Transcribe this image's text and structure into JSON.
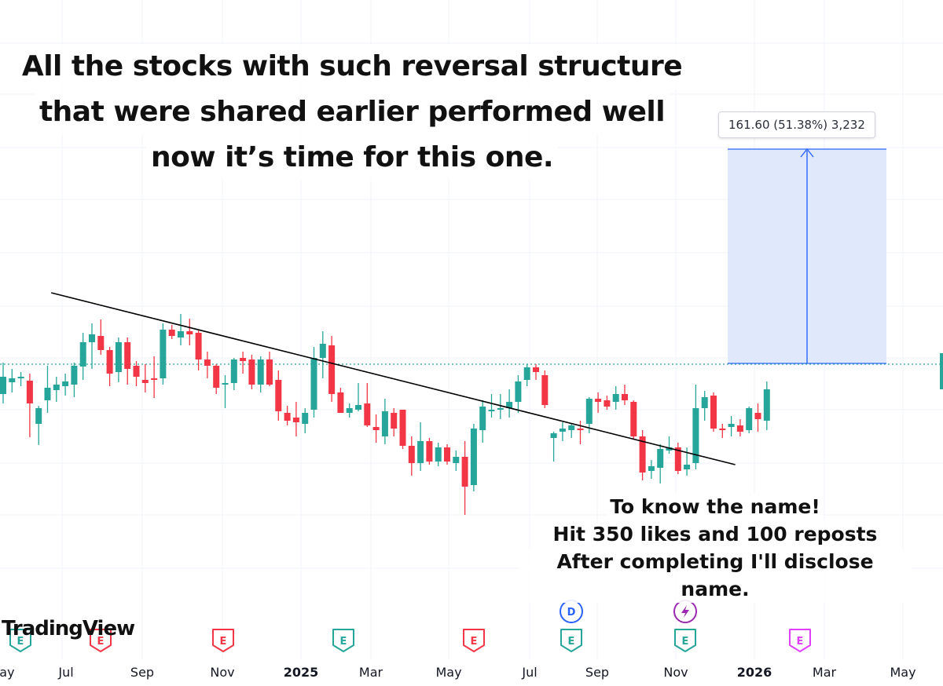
{
  "headline": {
    "line1": "All the stocks with such reversal structure",
    "line2": "that were shared earlier performed well",
    "line3": "now it’s time for this one."
  },
  "callout": {
    "line1": "To know the name!",
    "line2": "Hit 350 likes and 100 reposts",
    "line3": "After completing I'll disclose name."
  },
  "measure": {
    "label": "161.60 (51.38%) 3,232"
  },
  "brand": {
    "watermark": "TradingView"
  },
  "colors": {
    "up": "#26a69a",
    "down": "#f23645",
    "trendline": "#000000",
    "measure_fill": "#dbe4fb",
    "measure_line": "#2962ff",
    "price_line": "#26a69a",
    "grid": "#f0f3fa"
  },
  "axis": {
    "labels": [
      {
        "text": "May",
        "bold": false
      },
      {
        "text": "Jul",
        "bold": false
      },
      {
        "text": "Sep",
        "bold": false
      },
      {
        "text": "Nov",
        "bold": false
      },
      {
        "text": "2025",
        "bold": true
      },
      {
        "text": "Mar",
        "bold": false
      },
      {
        "text": "May",
        "bold": false
      },
      {
        "text": "Jul",
        "bold": false
      },
      {
        "text": "Sep",
        "bold": false
      },
      {
        "text": "Nov",
        "bold": false
      },
      {
        "text": "2026",
        "bold": true
      },
      {
        "text": "Mar",
        "bold": false
      },
      {
        "text": "May",
        "bold": false
      }
    ]
  },
  "events": [
    {
      "letter": "E",
      "kind": "earnings",
      "color": "#26a69a"
    },
    {
      "letter": "E",
      "kind": "earnings",
      "color": "#f23645"
    },
    {
      "letter": "E",
      "kind": "earnings",
      "color": "#f23645"
    },
    {
      "letter": "E",
      "kind": "earnings",
      "color": "#26a69a"
    },
    {
      "letter": "E",
      "kind": "earnings",
      "color": "#f23645"
    },
    {
      "letter": "D",
      "kind": "dividend",
      "color": "#2962ff"
    },
    {
      "letter": "E",
      "kind": "earnings",
      "color": "#26a69a"
    },
    {
      "letter": "lightning-icon",
      "kind": "split",
      "color": "#9c27b0"
    },
    {
      "letter": "E",
      "kind": "earnings",
      "color": "#26a69a"
    },
    {
      "letter": "E",
      "kind": "earnings",
      "color": "#e040fb"
    }
  ],
  "chart_data": {
    "type": "candlestick",
    "title": "",
    "x_unit": "weekly bars",
    "price_scale": "unlabeled",
    "trendline": {
      "from_week": 4,
      "to_week": 82,
      "from_price": 470,
      "to_price": 250
    },
    "measure": {
      "change": 161.6,
      "change_pct": 51.38,
      "bars": 3232
    },
    "candles": [
      {
        "o": 330,
        "h": 370,
        "l": 318,
        "c": 352
      },
      {
        "o": 345,
        "h": 362,
        "l": 332,
        "c": 350
      },
      {
        "o": 350,
        "h": 358,
        "l": 340,
        "c": 352
      },
      {
        "o": 347,
        "h": 356,
        "l": 275,
        "c": 318
      },
      {
        "o": 292,
        "h": 315,
        "l": 265,
        "c": 312
      },
      {
        "o": 322,
        "h": 366,
        "l": 306,
        "c": 338
      },
      {
        "o": 335,
        "h": 352,
        "l": 320,
        "c": 342
      },
      {
        "o": 340,
        "h": 356,
        "l": 328,
        "c": 346
      },
      {
        "o": 342,
        "h": 370,
        "l": 326,
        "c": 366
      },
      {
        "o": 365,
        "h": 408,
        "l": 348,
        "c": 396
      },
      {
        "o": 396,
        "h": 420,
        "l": 362,
        "c": 406
      },
      {
        "o": 404,
        "h": 425,
        "l": 380,
        "c": 386
      },
      {
        "o": 386,
        "h": 390,
        "l": 340,
        "c": 356
      },
      {
        "o": 358,
        "h": 402,
        "l": 345,
        "c": 396
      },
      {
        "o": 396,
        "h": 402,
        "l": 342,
        "c": 362
      },
      {
        "o": 366,
        "h": 372,
        "l": 340,
        "c": 352
      },
      {
        "o": 348,
        "h": 368,
        "l": 332,
        "c": 344
      },
      {
        "o": 350,
        "h": 378,
        "l": 325,
        "c": 348
      },
      {
        "o": 350,
        "h": 420,
        "l": 342,
        "c": 412
      },
      {
        "o": 412,
        "h": 418,
        "l": 400,
        "c": 404
      },
      {
        "o": 402,
        "h": 432,
        "l": 392,
        "c": 410
      },
      {
        "o": 410,
        "h": 426,
        "l": 392,
        "c": 406
      },
      {
        "o": 408,
        "h": 412,
        "l": 360,
        "c": 374
      },
      {
        "o": 374,
        "h": 384,
        "l": 350,
        "c": 366
      },
      {
        "o": 366,
        "h": 368,
        "l": 330,
        "c": 338
      },
      {
        "o": 342,
        "h": 354,
        "l": 312,
        "c": 344
      },
      {
        "o": 344,
        "h": 376,
        "l": 335,
        "c": 374
      },
      {
        "o": 376,
        "h": 384,
        "l": 356,
        "c": 372
      },
      {
        "o": 374,
        "h": 380,
        "l": 336,
        "c": 342
      },
      {
        "o": 342,
        "h": 378,
        "l": 332,
        "c": 374
      },
      {
        "o": 374,
        "h": 384,
        "l": 340,
        "c": 342
      },
      {
        "o": 348,
        "h": 360,
        "l": 296,
        "c": 308
      },
      {
        "o": 306,
        "h": 315,
        "l": 290,
        "c": 296
      },
      {
        "o": 300,
        "h": 320,
        "l": 276,
        "c": 294
      },
      {
        "o": 292,
        "h": 312,
        "l": 280,
        "c": 306
      },
      {
        "o": 310,
        "h": 390,
        "l": 300,
        "c": 376
      },
      {
        "o": 376,
        "h": 410,
        "l": 350,
        "c": 394
      },
      {
        "o": 392,
        "h": 404,
        "l": 320,
        "c": 330
      },
      {
        "o": 332,
        "h": 338,
        "l": 306,
        "c": 306
      },
      {
        "o": 306,
        "h": 318,
        "l": 300,
        "c": 312
      },
      {
        "o": 310,
        "h": 344,
        "l": 308,
        "c": 316
      },
      {
        "o": 318,
        "h": 344,
        "l": 288,
        "c": 290
      },
      {
        "o": 288,
        "h": 304,
        "l": 268,
        "c": 284
      },
      {
        "o": 276,
        "h": 324,
        "l": 266,
        "c": 308
      },
      {
        "o": 306,
        "h": 312,
        "l": 276,
        "c": 286
      },
      {
        "o": 310,
        "h": 310,
        "l": 260,
        "c": 264
      },
      {
        "o": 264,
        "h": 276,
        "l": 226,
        "c": 242
      },
      {
        "o": 242,
        "h": 294,
        "l": 232,
        "c": 270
      },
      {
        "o": 270,
        "h": 274,
        "l": 240,
        "c": 244
      },
      {
        "o": 244,
        "h": 268,
        "l": 238,
        "c": 262
      },
      {
        "o": 262,
        "h": 266,
        "l": 240,
        "c": 244
      },
      {
        "o": 242,
        "h": 258,
        "l": 232,
        "c": 250
      },
      {
        "o": 250,
        "h": 270,
        "l": 176,
        "c": 212
      },
      {
        "o": 214,
        "h": 292,
        "l": 206,
        "c": 286
      },
      {
        "o": 284,
        "h": 322,
        "l": 268,
        "c": 314
      },
      {
        "o": 308,
        "h": 330,
        "l": 300,
        "c": 310
      },
      {
        "o": 310,
        "h": 330,
        "l": 298,
        "c": 312
      },
      {
        "o": 312,
        "h": 336,
        "l": 300,
        "c": 320
      },
      {
        "o": 320,
        "h": 354,
        "l": 306,
        "c": 346
      },
      {
        "o": 348,
        "h": 368,
        "l": 340,
        "c": 364
      },
      {
        "o": 364,
        "h": 368,
        "l": 348,
        "c": 358
      },
      {
        "o": 354,
        "h": 360,
        "l": 312,
        "c": 316
      },
      {
        "o": 274,
        "h": 282,
        "l": 244,
        "c": 280
      },
      {
        "o": 282,
        "h": 294,
        "l": 270,
        "c": 286
      },
      {
        "o": 284,
        "h": 292,
        "l": 274,
        "c": 290
      },
      {
        "o": 286,
        "h": 296,
        "l": 266,
        "c": 284
      },
      {
        "o": 292,
        "h": 326,
        "l": 280,
        "c": 324
      },
      {
        "o": 324,
        "h": 332,
        "l": 306,
        "c": 320
      },
      {
        "o": 322,
        "h": 328,
        "l": 310,
        "c": 314
      },
      {
        "o": 320,
        "h": 340,
        "l": 310,
        "c": 330
      },
      {
        "o": 330,
        "h": 342,
        "l": 316,
        "c": 322
      },
      {
        "o": 320,
        "h": 322,
        "l": 272,
        "c": 276
      },
      {
        "o": 276,
        "h": 284,
        "l": 220,
        "c": 230
      },
      {
        "o": 232,
        "h": 246,
        "l": 222,
        "c": 238
      },
      {
        "o": 236,
        "h": 266,
        "l": 216,
        "c": 260
      },
      {
        "o": 258,
        "h": 276,
        "l": 254,
        "c": 262
      },
      {
        "o": 262,
        "h": 268,
        "l": 228,
        "c": 232
      },
      {
        "o": 234,
        "h": 262,
        "l": 226,
        "c": 240
      },
      {
        "o": 242,
        "h": 342,
        "l": 234,
        "c": 312
      },
      {
        "o": 312,
        "h": 334,
        "l": 296,
        "c": 326
      },
      {
        "o": 328,
        "h": 332,
        "l": 282,
        "c": 286
      },
      {
        "o": 286,
        "h": 292,
        "l": 274,
        "c": 284
      },
      {
        "o": 288,
        "h": 302,
        "l": 276,
        "c": 292
      },
      {
        "o": 290,
        "h": 298,
        "l": 276,
        "c": 282
      },
      {
        "o": 284,
        "h": 314,
        "l": 280,
        "c": 312
      },
      {
        "o": 306,
        "h": 318,
        "l": 282,
        "c": 298
      },
      {
        "o": 296,
        "h": 346,
        "l": 284,
        "c": 336
      }
    ]
  }
}
